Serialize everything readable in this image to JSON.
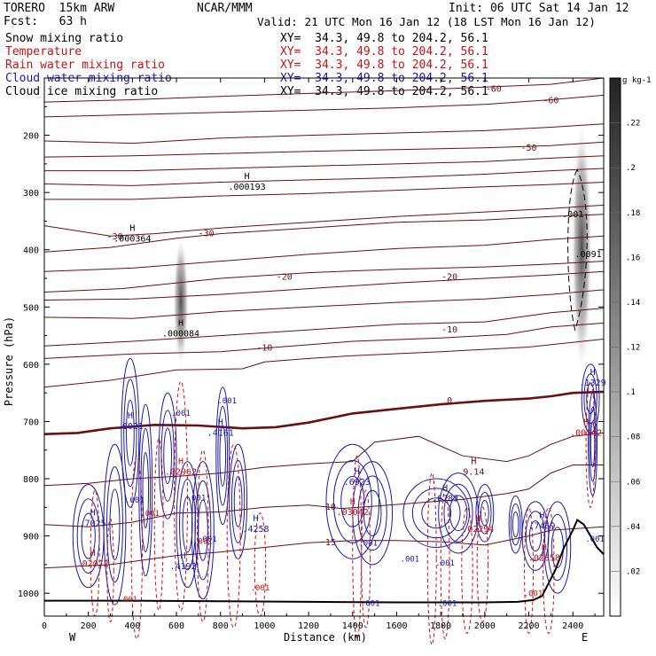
{
  "header": {
    "model": "TORERO  15km ARW",
    "forecast": "Fcst:   63 h",
    "center": "NCAR/MMM",
    "init": "Init: 06 UTC Sat 14 Jan 12",
    "valid": "Valid: 21 UTC Mon 16 Jan 12 (18 LST Mon 16 Jan 12)"
  },
  "fields": [
    {
      "label": "Snow mixing ratio",
      "xy": "XY=  34.3, 49.8 to 204.2, 56.1",
      "color": "#000000"
    },
    {
      "label": "Temperature",
      "xy": "XY=  34.3, 49.8 to 204.2, 56.1",
      "color": "#cc1111"
    },
    {
      "label": "Rain water mixing ratio",
      "xy": "XY=  34.3, 49.8 to 204.2, 56.1",
      "color": "#cc1111"
    },
    {
      "label": "Cloud water mixing ratio",
      "xy": "XY=  34.3, 49.8 to 204.2, 56.1",
      "color": "#1a1ab0"
    },
    {
      "label": "Cloud ice mixing ratio",
      "xy": "XY=  34.3, 49.8 to 204.2, 56.1",
      "color": "#000000"
    }
  ],
  "chart_data": {
    "type": "cross-section",
    "xlabel": "Distance (km)",
    "ylabel": "Pressure (hPa)",
    "xlim": [
      0,
      2540
    ],
    "ylim": [
      1040,
      100
    ],
    "x_ticks": [
      0,
      200,
      400,
      600,
      800,
      1000,
      1200,
      1400,
      1600,
      1800,
      2000,
      2200,
      2400
    ],
    "y_ticks": [
      200,
      300,
      400,
      500,
      600,
      700,
      800,
      900,
      1000
    ],
    "end_labels": {
      "left": "W",
      "right": "E"
    },
    "colorbar": {
      "unit": "g kg-1",
      "ticks": [
        ".02",
        ".04",
        ".06",
        ".08",
        ".1",
        ".12",
        ".14",
        ".16",
        ".18",
        ".2",
        ".22"
      ]
    },
    "temperature_contours": [
      {
        "value": -60,
        "label": "-60",
        "points": [
          [
            0,
            142
          ],
          [
            400,
            138
          ],
          [
            800,
            132
          ],
          [
            1200,
            127
          ],
          [
            1600,
            122
          ],
          [
            2000,
            116
          ],
          [
            2300,
            111
          ],
          [
            2540,
            100
          ]
        ],
        "label_at": [
          2040,
          118
        ]
      },
      {
        "value": -60,
        "label": "-60",
        "points": [
          [
            0,
            168
          ],
          [
            400,
            164
          ],
          [
            800,
            160
          ],
          [
            1200,
            156
          ],
          [
            1600,
            152
          ],
          [
            2000,
            146
          ],
          [
            2300,
            138
          ],
          [
            2540,
            130
          ]
        ],
        "label_at": [
          2300,
          138
        ]
      },
      {
        "value": -55,
        "label": "",
        "points": [
          [
            0,
            210
          ],
          [
            400,
            214
          ],
          [
            800,
            205
          ],
          [
            1200,
            200
          ],
          [
            1600,
            196
          ],
          [
            2000,
            192
          ],
          [
            2300,
            186
          ],
          [
            2540,
            180
          ]
        ]
      },
      {
        "value": -50,
        "label": "-50",
        "points": [
          [
            0,
            238
          ],
          [
            400,
            236
          ],
          [
            800,
            232
          ],
          [
            1200,
            228
          ],
          [
            1600,
            225
          ],
          [
            2000,
            222
          ],
          [
            2300,
            218
          ],
          [
            2540,
            212
          ]
        ],
        "label_at": [
          2200,
          221
        ]
      },
      {
        "value": -45,
        "label": "",
        "points": [
          [
            0,
            262
          ],
          [
            400,
            262
          ],
          [
            800,
            258
          ],
          [
            1200,
            254
          ],
          [
            1600,
            250
          ],
          [
            2000,
            246
          ],
          [
            2300,
            240
          ],
          [
            2540,
            236
          ]
        ]
      },
      {
        "value": -40,
        "label": "",
        "points": [
          [
            0,
            285
          ],
          [
            400,
            288
          ],
          [
            800,
            282
          ],
          [
            1200,
            278
          ],
          [
            1600,
            274
          ],
          [
            2000,
            268
          ],
          [
            2300,
            262
          ],
          [
            2540,
            258
          ]
        ]
      },
      {
        "value": -35,
        "label": "",
        "points": [
          [
            0,
            312
          ],
          [
            400,
            312
          ],
          [
            800,
            306
          ],
          [
            1200,
            302
          ],
          [
            1600,
            296
          ],
          [
            2000,
            290
          ],
          [
            2300,
            286
          ],
          [
            2540,
            282
          ]
        ]
      },
      {
        "value": -30,
        "label": "-30",
        "points": [
          [
            0,
            358
          ],
          [
            300,
            376
          ],
          [
            500,
            372
          ],
          [
            800,
            362
          ],
          [
            1200,
            352
          ],
          [
            1600,
            342
          ],
          [
            2000,
            334
          ],
          [
            2300,
            328
          ],
          [
            2540,
            322
          ]
        ],
        "label_at": [
          320,
          376
        ]
      },
      {
        "value": -30,
        "label": "-30",
        "points": [
          [
            0,
            404
          ],
          [
            300,
            396
          ],
          [
            600,
            380
          ],
          [
            800,
            372
          ],
          [
            1200,
            362
          ],
          [
            1600,
            352
          ],
          [
            2000,
            348
          ],
          [
            2300,
            342
          ],
          [
            2540,
            338
          ]
        ],
        "label_at": [
          735,
          370
        ]
      },
      {
        "value": -25,
        "label": "",
        "points": [
          [
            0,
            438
          ],
          [
            400,
            432
          ],
          [
            800,
            420
          ],
          [
            1200,
            408
          ],
          [
            1600,
            398
          ],
          [
            2000,
            392
          ],
          [
            2300,
            382
          ],
          [
            2540,
            376
          ]
        ]
      },
      {
        "value": -20,
        "label": "-20",
        "points": [
          [
            0,
            474
          ],
          [
            350,
            468
          ],
          [
            800,
            450
          ],
          [
            1200,
            440
          ],
          [
            1600,
            434
          ],
          [
            2000,
            430
          ],
          [
            2300,
            425
          ],
          [
            2540,
            420
          ]
        ],
        "label_at": [
          1090,
          446
        ]
      },
      {
        "value": -20,
        "label": "-20",
        "points": [
          [
            0,
            488
          ],
          [
            400,
            486
          ],
          [
            800,
            478
          ],
          [
            1200,
            468
          ],
          [
            1600,
            458
          ],
          [
            2000,
            450
          ],
          [
            2300,
            444
          ],
          [
            2540,
            438
          ]
        ],
        "label_at": [
          1840,
          446
        ]
      },
      {
        "value": -15,
        "label": "",
        "points": [
          [
            0,
            518
          ],
          [
            400,
            520
          ],
          [
            800,
            508
          ],
          [
            1200,
            500
          ],
          [
            1600,
            492
          ],
          [
            2000,
            486
          ],
          [
            2300,
            478
          ],
          [
            2540,
            470
          ]
        ]
      },
      {
        "value": -10,
        "label": "-10",
        "points": [
          [
            0,
            568
          ],
          [
            400,
            560
          ],
          [
            800,
            550
          ],
          [
            1200,
            540
          ],
          [
            1600,
            530
          ],
          [
            2000,
            526
          ],
          [
            2300,
            510
          ],
          [
            2540,
            502
          ]
        ],
        "label_at": [
          1840,
          538
        ]
      },
      {
        "value": -10,
        "label": "-10",
        "points": [
          [
            0,
            590
          ],
          [
            400,
            582
          ],
          [
            800,
            578
          ],
          [
            1000,
            572
          ],
          [
            1400,
            560
          ],
          [
            1800,
            554
          ],
          [
            2100,
            548
          ],
          [
            2300,
            535
          ],
          [
            2540,
            528
          ]
        ],
        "label_at": [
          1000,
          570
        ]
      },
      {
        "value": -5,
        "label": "",
        "points": [
          [
            0,
            640
          ],
          [
            300,
            628
          ],
          [
            600,
            610
          ],
          [
            900,
            608
          ],
          [
            1000,
            596
          ],
          [
            1200,
            590
          ],
          [
            1400,
            585
          ],
          [
            1800,
            578
          ],
          [
            2200,
            570
          ],
          [
            2540,
            556
          ]
        ]
      },
      {
        "value": 0,
        "label": "0",
        "points": [
          [
            0,
            722
          ],
          [
            150,
            720
          ],
          [
            300,
            712
          ],
          [
            500,
            706
          ],
          [
            700,
            707
          ],
          [
            900,
            712
          ],
          [
            1050,
            710
          ],
          [
            1200,
            702
          ],
          [
            1400,
            686
          ],
          [
            1600,
            678
          ],
          [
            1800,
            670
          ],
          [
            2000,
            664
          ],
          [
            2200,
            660
          ],
          [
            2300,
            656
          ],
          [
            2400,
            650
          ],
          [
            2540,
            648
          ]
        ],
        "label_at": [
          1840,
          662
        ],
        "bold": true
      },
      {
        "value": 5,
        "label": "",
        "points": [
          [
            0,
            812
          ],
          [
            200,
            808
          ],
          [
            400,
            800
          ],
          [
            600,
            796
          ],
          [
            800,
            790
          ],
          [
            1000,
            780
          ],
          [
            1200,
            774
          ],
          [
            1400,
            770
          ],
          [
            1500,
            736
          ],
          [
            1700,
            726
          ],
          [
            1900,
            760
          ],
          [
            2100,
            770
          ],
          [
            2200,
            760
          ],
          [
            2300,
            740
          ],
          [
            2400,
            726
          ],
          [
            2540,
            720
          ]
        ]
      },
      {
        "value": 10,
        "label": "10",
        "points": [
          [
            0,
            880
          ],
          [
            200,
            884
          ],
          [
            400,
            876
          ],
          [
            600,
            860
          ],
          [
            800,
            858
          ],
          [
            1000,
            850
          ],
          [
            1200,
            846
          ],
          [
            1350,
            852
          ],
          [
            1500,
            848
          ],
          [
            1700,
            842
          ],
          [
            1900,
            836
          ],
          [
            2100,
            826
          ],
          [
            2200,
            818
          ],
          [
            2300,
            790
          ],
          [
            2400,
            776
          ],
          [
            2540,
            776
          ]
        ],
        "label_at": [
          1300,
          848
        ]
      },
      {
        "value": 15,
        "label": "15",
        "points": [
          [
            0,
            956
          ],
          [
            300,
            950
          ],
          [
            600,
            934
          ],
          [
            800,
            928
          ],
          [
            1000,
            920
          ],
          [
            1200,
            912
          ],
          [
            1400,
            908
          ],
          [
            1600,
            908
          ],
          [
            1800,
            910
          ],
          [
            2000,
            916
          ],
          [
            2200,
            900
          ],
          [
            2300,
            890
          ],
          [
            2540,
            884
          ]
        ],
        "label_at": [
          1300,
          910
        ]
      }
    ],
    "snow_maxima": [
      {
        "label": "H",
        "value": ".000193",
        "x": 920,
        "p": 292
      },
      {
        "label": "H",
        "value": ".000364",
        "x": 400,
        "p": 383
      },
      {
        "label": "H",
        "value": ".000084",
        "x": 620,
        "p": 548
      },
      {
        "label": "",
        "value": ".001",
        "x": 2400,
        "p": 340
      },
      {
        "label": "",
        "value": ".0091",
        "x": 2470,
        "p": 410
      }
    ],
    "cloud_water_maxima": [
      {
        "label": "H",
        "value": ".6021",
        "x": 390,
        "p": 710
      },
      {
        "label": "H",
        "value": ".4161",
        "x": 800,
        "p": 722
      },
      {
        "label": "H",
        "value": ".4258",
        "x": 960,
        "p": 890
      },
      {
        "label": "H",
        "value": ".4192",
        "x": 630,
        "p": 955
      },
      {
        "label": "H",
        "value": ".7025",
        "x": 220,
        "p": 880
      },
      {
        "label": "H",
        "value": ".6923",
        "x": 1420,
        "p": 808
      },
      {
        "label": "H",
        "value": ".6783",
        "x": 1820,
        "p": 836
      },
      {
        "label": "H",
        "value": ".7469",
        "x": 2260,
        "p": 884
      },
      {
        "label": "H",
        "value": ".1329",
        "x": 2490,
        "p": 634
      }
    ],
    "rain_maxima": [
      {
        "label": "H",
        "value": ".02962",
        "x": 620,
        "p": 790
      },
      {
        "label": "H",
        "value": ".02072",
        "x": 220,
        "p": 950
      },
      {
        "label": "H",
        "value": ".03042",
        "x": 1400,
        "p": 860
      },
      {
        "label": "H",
        "value": ".02294",
        "x": 1970,
        "p": 890
      },
      {
        "label": "H",
        "value": ".02358",
        "x": 2270,
        "p": 940
      },
      {
        "label": "H",
        "value": ".00142",
        "x": 2460,
        "p": 722
      }
    ],
    "temperature_maxima": [
      {
        "label": "H",
        "value": "9.14",
        "x": 1950,
        "p": 790
      }
    ],
    "contour_labels": {
      "cloud_water": ".001",
      "rain": ".001"
    }
  }
}
